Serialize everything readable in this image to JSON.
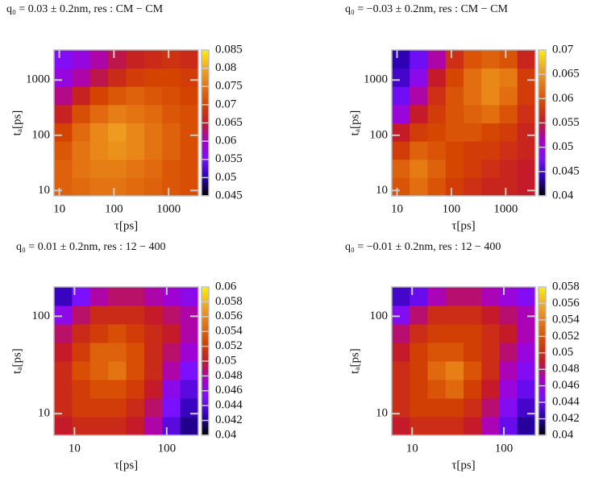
{
  "chart_data": [
    {
      "type": "heatmap",
      "title": "q₀ = 0.03 ± 0.2nm,  res : CM − CM",
      "xlabel": "τ[ps]",
      "ylabel": "tₐ[ps]",
      "log_scale": true,
      "xlim": [
        8,
        3500
      ],
      "ylim": [
        8,
        3500
      ],
      "xticks": [
        10,
        100,
        1000
      ],
      "yticks": [
        10,
        100,
        1000
      ],
      "zlim": [
        0.045,
        0.085
      ],
      "zticks": [
        0.045,
        0.05,
        0.055,
        0.06,
        0.065,
        0.07,
        0.075,
        0.08,
        0.085
      ],
      "colormap": [
        "#000000",
        "#2a00b0",
        "#7a10ff",
        "#a800c8",
        "#c41a2a",
        "#d44400",
        "#e47412",
        "#f0a624",
        "#fff000"
      ],
      "z": [
        [
          0.073,
          0.074,
          0.075,
          0.075,
          0.074,
          0.073,
          0.072,
          0.071
        ],
        [
          0.073,
          0.075,
          0.076,
          0.076,
          0.075,
          0.074,
          0.072,
          0.071
        ],
        [
          0.072,
          0.075,
          0.077,
          0.078,
          0.077,
          0.075,
          0.073,
          0.071
        ],
        [
          0.07,
          0.074,
          0.077,
          0.079,
          0.077,
          0.075,
          0.073,
          0.071
        ],
        [
          0.066,
          0.071,
          0.074,
          0.076,
          0.075,
          0.074,
          0.072,
          0.071
        ],
        [
          0.062,
          0.066,
          0.07,
          0.072,
          0.073,
          0.072,
          0.071,
          0.07
        ],
        [
          0.058,
          0.061,
          0.064,
          0.067,
          0.069,
          0.07,
          0.07,
          0.069
        ],
        [
          0.056,
          0.058,
          0.061,
          0.064,
          0.066,
          0.067,
          0.068,
          0.067
        ]
      ]
    },
    {
      "type": "heatmap",
      "title": "q₀ = −0.03 ± 0.2nm,  res : CM − CM",
      "xlabel": "τ[ps]",
      "ylabel": "tₐ[ps]",
      "log_scale": true,
      "xlim": [
        8,
        3500
      ],
      "ylim": [
        8,
        3500
      ],
      "xticks": [
        10,
        100,
        1000
      ],
      "yticks": [
        10,
        100,
        1000
      ],
      "zlim": [
        0.04,
        0.07
      ],
      "zticks": [
        0.04,
        0.045,
        0.05,
        0.055,
        0.06,
        0.065,
        0.07
      ],
      "colormap": [
        "#000000",
        "#2a00b0",
        "#7a10ff",
        "#a800c8",
        "#c41a2a",
        "#d44400",
        "#e47412",
        "#f0a624",
        "#fff000"
      ],
      "z": [
        [
          0.06,
          0.062,
          0.06,
          0.058,
          0.057,
          0.056,
          0.056,
          0.055
        ],
        [
          0.061,
          0.063,
          0.061,
          0.059,
          0.058,
          0.057,
          0.056,
          0.055
        ],
        [
          0.058,
          0.061,
          0.06,
          0.059,
          0.058,
          0.058,
          0.057,
          0.056
        ],
        [
          0.055,
          0.058,
          0.059,
          0.06,
          0.06,
          0.059,
          0.058,
          0.056
        ],
        [
          0.05,
          0.055,
          0.058,
          0.06,
          0.061,
          0.062,
          0.06,
          0.057
        ],
        [
          0.047,
          0.052,
          0.057,
          0.06,
          0.062,
          0.064,
          0.062,
          0.058
        ],
        [
          0.045,
          0.049,
          0.055,
          0.059,
          0.062,
          0.064,
          0.063,
          0.058
        ],
        [
          0.044,
          0.047,
          0.052,
          0.057,
          0.06,
          0.061,
          0.06,
          0.056
        ]
      ]
    },
    {
      "type": "heatmap",
      "title": "q₀ = 0.01 ± 0.2nm,  res : 12 − 400",
      "xlabel": "τ[ps]",
      "ylabel": "tₐ[ps]",
      "log_scale": true,
      "xlim": [
        6,
        220
      ],
      "ylim": [
        6,
        200
      ],
      "xticks": [
        10,
        100
      ],
      "yticks": [
        10,
        100
      ],
      "zlim": [
        0.04,
        0.06
      ],
      "zticks": [
        0.04,
        0.042,
        0.044,
        0.046,
        0.048,
        0.05,
        0.052,
        0.054,
        0.056,
        0.058,
        0.06
      ],
      "colormap": [
        "#000000",
        "#2a00b0",
        "#7a10ff",
        "#a800c8",
        "#c41a2a",
        "#d44400",
        "#e47412",
        "#f0a624",
        "#fff000"
      ],
      "z": [
        [
          0.05,
          0.051,
          0.051,
          0.051,
          0.05,
          0.048,
          0.044,
          0.042
        ],
        [
          0.051,
          0.052,
          0.052,
          0.052,
          0.051,
          0.049,
          0.045,
          0.043
        ],
        [
          0.051,
          0.052,
          0.053,
          0.053,
          0.052,
          0.05,
          0.046,
          0.044
        ],
        [
          0.051,
          0.053,
          0.054,
          0.055,
          0.053,
          0.051,
          0.048,
          0.045
        ],
        [
          0.05,
          0.052,
          0.054,
          0.054,
          0.053,
          0.051,
          0.049,
          0.047
        ],
        [
          0.049,
          0.051,
          0.052,
          0.053,
          0.052,
          0.051,
          0.05,
          0.048
        ],
        [
          0.046,
          0.049,
          0.051,
          0.051,
          0.051,
          0.05,
          0.049,
          0.048
        ],
        [
          0.043,
          0.045,
          0.048,
          0.049,
          0.049,
          0.048,
          0.047,
          0.046
        ]
      ]
    },
    {
      "type": "heatmap",
      "title": "q₀ = −0.01 ± 0.2nm,  res : 12 − 400",
      "xlabel": "τ[ps]",
      "ylabel": "tₐ[ps]",
      "log_scale": true,
      "xlim": [
        6,
        220
      ],
      "ylim": [
        6,
        200
      ],
      "xticks": [
        10,
        100
      ],
      "yticks": [
        10,
        100
      ],
      "zlim": [
        0.04,
        0.058
      ],
      "zticks": [
        0.04,
        0.042,
        0.044,
        0.046,
        0.048,
        0.05,
        0.052,
        0.054,
        0.056,
        0.058
      ],
      "colormap": [
        "#000000",
        "#2a00b0",
        "#7a10ff",
        "#a800c8",
        "#c41a2a",
        "#d44400",
        "#e47412",
        "#f0a624",
        "#fff000"
      ],
      "z": [
        [
          0.049,
          0.05,
          0.05,
          0.05,
          0.049,
          0.047,
          0.044,
          0.042
        ],
        [
          0.05,
          0.051,
          0.051,
          0.051,
          0.05,
          0.048,
          0.045,
          0.043
        ],
        [
          0.05,
          0.051,
          0.052,
          0.053,
          0.051,
          0.049,
          0.046,
          0.044
        ],
        [
          0.05,
          0.051,
          0.053,
          0.054,
          0.052,
          0.05,
          0.047,
          0.045
        ],
        [
          0.049,
          0.051,
          0.052,
          0.052,
          0.051,
          0.05,
          0.048,
          0.046
        ],
        [
          0.048,
          0.05,
          0.051,
          0.051,
          0.051,
          0.05,
          0.049,
          0.047
        ],
        [
          0.045,
          0.048,
          0.05,
          0.05,
          0.05,
          0.049,
          0.048,
          0.047
        ],
        [
          0.043,
          0.044,
          0.047,
          0.048,
          0.048,
          0.047,
          0.046,
          0.045
        ]
      ]
    }
  ]
}
